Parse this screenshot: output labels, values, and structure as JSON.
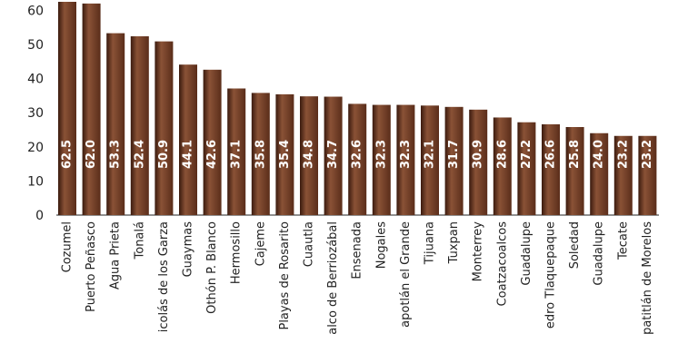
{
  "chart_data": {
    "type": "bar",
    "title": "",
    "xlabel": "",
    "ylabel": "",
    "ylim": [
      0,
      60
    ],
    "yticks": [
      0,
      10,
      20,
      30,
      40,
      50,
      60
    ],
    "grid": false,
    "legend": "none",
    "colors": {
      "bar": "#5a2d1a",
      "bar_highlight": "#8a5236",
      "bar_shadow": "#3a1a0e",
      "value_text": "#ffffff",
      "axis": "#222222"
    },
    "categories": [
      "Cozumel",
      "Puerto Peñasco",
      "Agua Prieta",
      "Tonalá",
      "icolás de los Garza",
      "Guaymas",
      "Othón P. Blanco",
      "Hermosillo",
      "Cajeme",
      "Playas de Rosarito",
      "Cuautla",
      "alco de Berriozábal",
      "Ensenada",
      "Nogales",
      "apotlán el Grande",
      "Tijuana",
      "Tuxpan",
      "Monterrey",
      "Coatzacoalcos",
      "Guadalupe",
      "edro Tlaquepaque",
      "Soledad",
      "Guadalupe",
      "Tecate",
      "patitlán de Morelos"
    ],
    "values": [
      62.5,
      62.0,
      53.3,
      52.4,
      50.9,
      44.1,
      42.6,
      37.1,
      35.8,
      35.4,
      34.8,
      34.7,
      32.6,
      32.3,
      32.3,
      32.1,
      31.7,
      30.9,
      28.6,
      27.2,
      26.6,
      25.8,
      24.0,
      23.2,
      23.2
    ],
    "value_labels": [
      "62.5",
      "62.0",
      "53.3",
      "52.4",
      "50.9",
      "44.1",
      "42.6",
      "37.1",
      "35.8",
      "35.4",
      "34.8",
      "34.7",
      "32.6",
      "32.3",
      "32.3",
      "32.1",
      "31.7",
      "30.9",
      "28.6",
      "27.2",
      "26.6",
      "25.8",
      "24.0",
      "23.2",
      "23.2"
    ]
  }
}
